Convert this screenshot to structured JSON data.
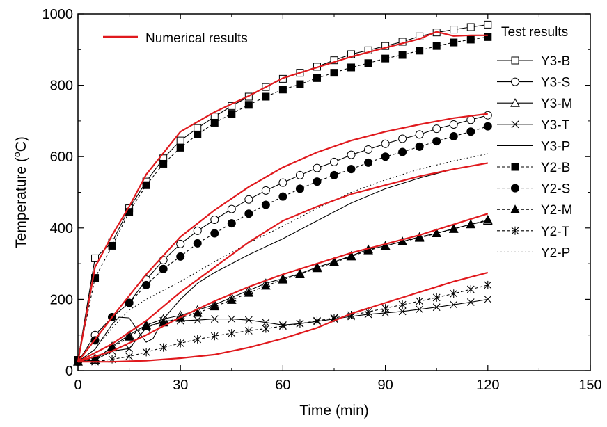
{
  "chart_data": {
    "type": "line",
    "title": "",
    "xlabel": "Time (min)",
    "ylabel": "Temperature (oC)",
    "ylabel_parts": {
      "prefix": "Temperature (",
      "superscript": "o",
      "suffix": "C)"
    },
    "xlim": [
      0,
      150
    ],
    "ylim": [
      0,
      1000
    ],
    "xticks": [
      0,
      30,
      60,
      90,
      120,
      150
    ],
    "yticks": [
      0,
      200,
      400,
      600,
      800,
      1000
    ],
    "xtick_labels": [
      "0",
      "30",
      "60",
      "90",
      "120",
      "150"
    ],
    "ytick_labels": [
      "0",
      "200",
      "400",
      "600",
      "800",
      "1000"
    ],
    "grid": false,
    "numerical_legend": {
      "label": "Numerical results",
      "placement": "top-left",
      "color": "#e0191d"
    },
    "test_legend": {
      "title": "Test results",
      "placement": "top-right"
    },
    "numerical_series": [
      {
        "x": [
          0,
          5,
          10,
          15,
          20,
          25,
          30,
          40,
          50,
          60,
          70,
          80,
          90,
          100,
          105,
          110,
          115,
          120
        ],
        "y": [
          25,
          290,
          380,
          460,
          550,
          610,
          670,
          725,
          770,
          820,
          850,
          880,
          905,
          930,
          950,
          938,
          940,
          940
        ]
      },
      {
        "x": [
          0,
          10,
          20,
          30,
          40,
          50,
          60,
          70,
          80,
          90,
          100,
          110,
          120
        ],
        "y": [
          25,
          150,
          270,
          375,
          450,
          515,
          570,
          612,
          645,
          670,
          690,
          708,
          720
        ]
      },
      {
        "x": [
          0,
          10,
          20,
          30,
          40,
          50,
          60,
          70,
          80,
          90,
          100,
          110,
          120
        ],
        "y": [
          25,
          75,
          140,
          220,
          290,
          360,
          420,
          460,
          495,
          520,
          545,
          565,
          582
        ]
      },
      {
        "x": [
          0,
          10,
          20,
          30,
          40,
          50,
          60,
          70,
          80,
          90,
          100,
          110,
          120
        ],
        "y": [
          25,
          55,
          100,
          150,
          195,
          235,
          270,
          300,
          330,
          355,
          380,
          410,
          440
        ]
      },
      {
        "x": [
          0,
          10,
          20,
          30,
          40,
          50,
          60,
          70,
          80,
          90,
          100,
          110,
          120
        ],
        "y": [
          25,
          25,
          28,
          35,
          45,
          65,
          90,
          120,
          160,
          190,
          220,
          250,
          275
        ]
      }
    ],
    "series": [
      {
        "name": "Y3-B",
        "marker": "square-open",
        "line": "solid",
        "marker_every": 1,
        "x": [
          0,
          5,
          10,
          15,
          20,
          25,
          30,
          35,
          40,
          45,
          50,
          55,
          60,
          65,
          70,
          75,
          80,
          85,
          90,
          95,
          100,
          105,
          110,
          115,
          120
        ],
        "y": [
          30,
          315,
          360,
          455,
          530,
          595,
          645,
          680,
          712,
          742,
          768,
          795,
          818,
          835,
          852,
          870,
          887,
          898,
          910,
          922,
          937,
          948,
          956,
          963,
          970
        ]
      },
      {
        "name": "Y3-S",
        "marker": "circle-open",
        "line": "solid",
        "marker_every": 1,
        "x": [
          0,
          5,
          10,
          15,
          20,
          25,
          30,
          35,
          40,
          45,
          50,
          55,
          60,
          65,
          70,
          75,
          80,
          85,
          90,
          95,
          100,
          105,
          110,
          115,
          120
        ],
        "y": [
          25,
          100,
          150,
          190,
          255,
          310,
          355,
          392,
          423,
          453,
          480,
          505,
          527,
          548,
          568,
          585,
          605,
          620,
          636,
          650,
          662,
          678,
          690,
          703,
          716
        ]
      },
      {
        "name": "Y3-M",
        "marker": "triangle-open",
        "line": "solid",
        "marker_every": 1,
        "x": [
          0,
          5,
          10,
          15,
          20,
          25,
          30,
          35,
          40,
          45,
          50,
          55,
          60,
          65,
          70,
          75,
          80,
          85,
          90,
          95,
          100,
          105,
          110,
          115,
          120
        ],
        "y": [
          25,
          30,
          68,
          100,
          128,
          145,
          155,
          170,
          185,
          205,
          225,
          245,
          258,
          272,
          290,
          305,
          322,
          340,
          350,
          362,
          375,
          385,
          398,
          410,
          420
        ]
      },
      {
        "name": "Y3-T",
        "marker": "x",
        "line": "solid",
        "marker_every": 1,
        "x": [
          0,
          5,
          10,
          15,
          20,
          25,
          30,
          35,
          40,
          45,
          50,
          55,
          60,
          65,
          70,
          75,
          80,
          85,
          90,
          95,
          100,
          105,
          110,
          115,
          120
        ],
        "y": [
          25,
          30,
          55,
          62,
          120,
          140,
          140,
          142,
          145,
          145,
          142,
          135,
          128,
          132,
          138,
          145,
          152,
          158,
          162,
          166,
          172,
          178,
          185,
          192,
          200
        ]
      },
      {
        "name": "Y3-P",
        "marker": "none",
        "line": "solid",
        "marker_every": 1,
        "x": [
          0,
          5,
          10,
          12,
          15,
          18,
          20,
          22,
          25,
          30,
          35,
          40,
          45,
          50,
          60,
          70,
          80,
          90,
          100,
          110,
          120
        ],
        "y": [
          25,
          60,
          130,
          150,
          148,
          105,
          80,
          90,
          145,
          200,
          245,
          275,
          300,
          325,
          370,
          420,
          470,
          510,
          540,
          565,
          582
        ]
      },
      {
        "name": "Y2-B",
        "marker": "square-filled",
        "line": "dashed",
        "marker_every": 1,
        "x": [
          0,
          5,
          10,
          15,
          20,
          25,
          30,
          35,
          40,
          45,
          50,
          55,
          60,
          65,
          70,
          75,
          80,
          85,
          90,
          95,
          100,
          105,
          110,
          115,
          120
        ],
        "y": [
          30,
          260,
          350,
          445,
          520,
          580,
          625,
          662,
          695,
          720,
          745,
          768,
          788,
          803,
          820,
          835,
          850,
          862,
          875,
          885,
          897,
          910,
          920,
          928,
          935
        ]
      },
      {
        "name": "Y2-S",
        "marker": "circle-filled",
        "line": "dashed",
        "marker_every": 1,
        "x": [
          0,
          5,
          10,
          15,
          20,
          25,
          30,
          35,
          40,
          45,
          50,
          55,
          60,
          65,
          70,
          75,
          80,
          85,
          90,
          95,
          100,
          105,
          110,
          115,
          120
        ],
        "y": [
          25,
          85,
          150,
          190,
          240,
          285,
          320,
          357,
          385,
          413,
          440,
          465,
          488,
          510,
          530,
          548,
          565,
          583,
          600,
          613,
          628,
          643,
          657,
          670,
          685
        ]
      },
      {
        "name": "Y2-M",
        "marker": "triangle-filled",
        "line": "dashed",
        "marker_every": 1,
        "x": [
          0,
          5,
          10,
          15,
          20,
          25,
          30,
          35,
          40,
          45,
          50,
          55,
          60,
          65,
          70,
          75,
          80,
          85,
          90,
          95,
          100,
          105,
          110,
          115,
          120
        ],
        "y": [
          25,
          35,
          65,
          95,
          125,
          135,
          148,
          162,
          180,
          198,
          218,
          238,
          255,
          270,
          287,
          303,
          320,
          337,
          350,
          362,
          372,
          385,
          397,
          410,
          423
        ]
      },
      {
        "name": "Y2-T",
        "marker": "asterisk",
        "line": "dashed",
        "marker_every": 1,
        "x": [
          0,
          5,
          10,
          15,
          20,
          25,
          30,
          35,
          40,
          45,
          50,
          55,
          60,
          65,
          70,
          75,
          80,
          85,
          90,
          95,
          100,
          105,
          110,
          115,
          120
        ],
        "y": [
          25,
          25,
          32,
          40,
          52,
          65,
          77,
          88,
          97,
          105,
          112,
          118,
          125,
          132,
          140,
          148,
          156,
          165,
          175,
          185,
          195,
          205,
          216,
          228,
          240
        ]
      },
      {
        "name": "Y2-P",
        "marker": "none",
        "line": "dotted",
        "marker_every": 1,
        "x": [
          0,
          5,
          10,
          15,
          20,
          25,
          30,
          40,
          50,
          60,
          70,
          80,
          90,
          100,
          110,
          120
        ],
        "y": [
          25,
          60,
          120,
          170,
          200,
          225,
          250,
          305,
          358,
          405,
          455,
          500,
          535,
          565,
          588,
          608
        ]
      }
    ]
  }
}
